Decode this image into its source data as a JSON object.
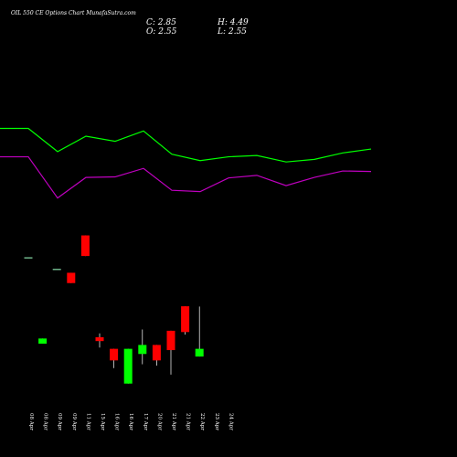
{
  "header": {
    "title": "OIL 550  CE Options  Chart MunafaSutra.com",
    "close_label": "C: 2.85",
    "high_label": "H: 4.49",
    "open_label": "O: 2.55",
    "low_label": "L: 2.55"
  },
  "colors": {
    "background": "#000000",
    "up": "#00ff00",
    "down": "#ff0000",
    "line_green": "#00ff00",
    "line_magenta": "#c000c0",
    "text": "#ffffff",
    "wick": "#ffffff"
  },
  "chart_data": {
    "type": "candlestick",
    "categories": [
      "08 Apr",
      "08 Apr",
      "09 Apr",
      "09 Apr",
      "11 Apr",
      "15 Apr",
      "16 Apr",
      "16 Apr",
      "17 Apr",
      "20 Apr",
      "21 Apr",
      "21 Apr",
      "22 Apr",
      "23 Apr",
      "24 Apr"
    ],
    "price_axis": {
      "min": 0,
      "max": 6
    },
    "candles": [
      {
        "open": 6.4,
        "close": 6.4,
        "high": 6.4,
        "low": 6.4,
        "dir": "flat"
      },
      {
        "open": 3.05,
        "close": 3.25,
        "high": 3.25,
        "low": 3.05,
        "dir": "up"
      },
      {
        "open": 5.95,
        "close": 5.95,
        "high": 5.95,
        "low": 5.95,
        "dir": "flat"
      },
      {
        "open": 5.8,
        "close": 5.4,
        "high": 5.8,
        "low": 5.4,
        "dir": "down"
      },
      {
        "open": 7.25,
        "close": 6.45,
        "high": 7.25,
        "low": 6.45,
        "dir": "down"
      },
      {
        "open": 3.3,
        "close": 3.15,
        "high": 3.45,
        "low": 2.9,
        "dir": "down"
      },
      {
        "open": 2.85,
        "close": 2.4,
        "high": 2.85,
        "low": 2.1,
        "dir": "down"
      },
      {
        "open": 1.5,
        "close": 2.85,
        "high": 2.85,
        "low": 1.5,
        "dir": "up"
      },
      {
        "open": 2.65,
        "close": 3.0,
        "high": 3.6,
        "low": 2.25,
        "dir": "up"
      },
      {
        "open": 3.0,
        "close": 2.4,
        "high": 3.0,
        "low": 2.2,
        "dir": "down"
      },
      {
        "open": 3.55,
        "close": 2.8,
        "high": 3.55,
        "low": 1.85,
        "dir": "down"
      },
      {
        "open": 4.5,
        "close": 3.5,
        "high": 4.5,
        "low": 3.4,
        "dir": "down"
      },
      {
        "open": 2.55,
        "close": 2.85,
        "high": 4.49,
        "low": 2.55,
        "dir": "up"
      }
    ],
    "candle_slots": [
      0,
      1,
      2,
      3,
      4,
      5,
      6,
      7,
      8,
      9,
      10,
      11,
      12
    ],
    "lines": [
      {
        "color_key": "line_green",
        "values": [
          11.4,
          11.4,
          10.5,
          11.1,
          10.9,
          11.3,
          10.4,
          10.15,
          10.3,
          10.35,
          10.1,
          10.2,
          10.45,
          10.6
        ]
      },
      {
        "color_key": "line_magenta",
        "values": [
          10.3,
          10.3,
          8.7,
          9.5,
          9.52,
          9.85,
          9.0,
          8.95,
          9.48,
          9.58,
          9.18,
          9.5,
          9.75,
          9.73
        ]
      }
    ]
  }
}
